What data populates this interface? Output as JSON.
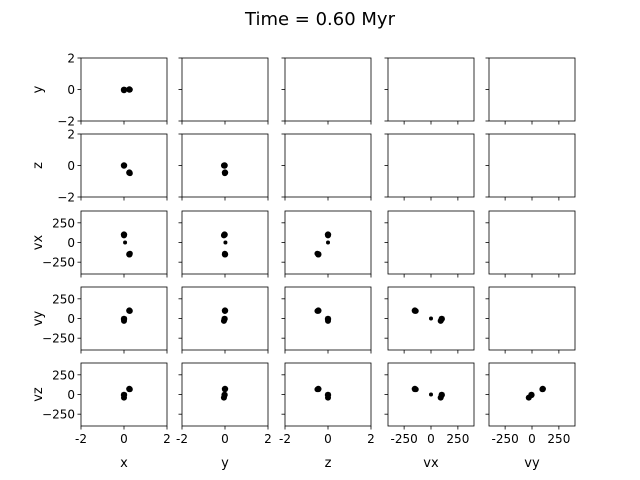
{
  "title": "Time = 0.60 Myr",
  "colors": {
    "marker": "#000000",
    "axes": "#000000",
    "background": "#ffffff"
  },
  "chart_data": {
    "type": "scatter",
    "title": "Time = 0.60 Myr",
    "layout": "5x5 lower-triangular pair-plot grid, shared axes per row and column, upper-triangle panels empty",
    "variables": [
      "x",
      "y",
      "z",
      "vx",
      "vy",
      "vz"
    ],
    "columns": [
      "x",
      "y",
      "z",
      "vx",
      "vy"
    ],
    "rows": [
      "y",
      "z",
      "vx",
      "vy",
      "vz"
    ],
    "xlabels": [
      "x",
      "y",
      "z",
      "vx",
      "vy"
    ],
    "ylabels": [
      "y",
      "z",
      "vx",
      "vy",
      "vz"
    ],
    "ranges": {
      "x": [
        -2,
        2
      ],
      "y": [
        -2,
        2
      ],
      "z": [
        -2,
        2
      ],
      "vx": [
        -400,
        400
      ],
      "vy": [
        -400,
        400
      ],
      "vz": [
        -400,
        400
      ]
    },
    "xticks": {
      "x": [
        "-2",
        "0",
        "2"
      ],
      "y": [
        "-2",
        "0",
        "2"
      ],
      "z": [
        "-2",
        "0",
        "2"
      ],
      "vx": [
        "-250",
        "0",
        "250"
      ],
      "vy": [
        "-250",
        "0",
        "250"
      ]
    },
    "xtick_values": {
      "x": [
        -2,
        0,
        2
      ],
      "y": [
        -2,
        0,
        2
      ],
      "z": [
        -2,
        0,
        2
      ],
      "vx": [
        -250,
        0,
        250
      ],
      "vy": [
        -250,
        0,
        250
      ]
    },
    "yticks": {
      "y": [
        "2",
        "0",
        "−2"
      ],
      "z": [
        "2",
        "0",
        "−2"
      ],
      "vx": [
        "250",
        "0",
        "−250"
      ],
      "vy": [
        "250",
        "0",
        "−250"
      ],
      "vz": [
        "250",
        "0",
        "−250"
      ]
    },
    "ytick_values": {
      "y": [
        2,
        0,
        -2
      ],
      "z": [
        2,
        0,
        -2
      ],
      "vx": [
        250,
        0,
        -250
      ],
      "vy": [
        250,
        0,
        -250
      ],
      "vz": [
        250,
        0,
        -250
      ]
    },
    "particles": [
      {
        "x": 0.0,
        "y": -0.02,
        "z": 0.0,
        "vx": 100,
        "vy": -5,
        "vz": -5,
        "size": 3.2
      },
      {
        "x": 0.05,
        "y": 0.02,
        "z": 0.0,
        "vx": 0,
        "vy": 0,
        "vz": 0,
        "size": 2.0
      },
      {
        "x": 0.25,
        "y": 0.0,
        "z": -0.45,
        "vx": -150,
        "vy": 100,
        "vz": 70,
        "size": 3.2
      },
      {
        "x": 0.0,
        "y": -0.05,
        "z": 0.0,
        "vx": 90,
        "vy": -30,
        "vz": -40,
        "size": 3.0
      },
      {
        "x": 0.28,
        "y": -0.01,
        "z": -0.5,
        "vx": -140,
        "vy": 95,
        "vz": 65,
        "size": 2.8
      }
    ],
    "grid": false,
    "legend": "none"
  }
}
